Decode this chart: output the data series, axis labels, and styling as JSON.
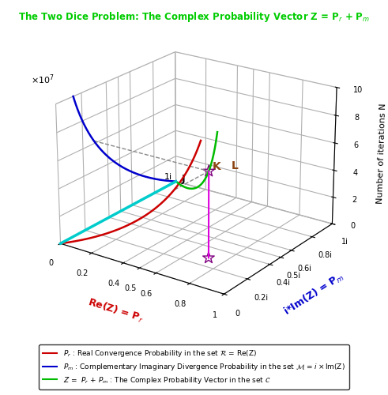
{
  "title_color": "#00CC00",
  "xlabel_color": "#CC0000",
  "ylabel_color": "#0000CC",
  "zlabel_color": "#000000",
  "red_color": "#CC0000",
  "blue_color": "#0000CC",
  "green_color": "#00BB00",
  "cyan_color": "#00CCCC",
  "magenta_color": "#DD00DD",
  "grey_dash_color": "#888888",
  "K_label_color": "#8B4513",
  "L_label_color": "#8B4513",
  "N_max": 10000000,
  "k_rate": 2e-07,
  "N_K": 6200000,
  "x_ticks": [
    0,
    0.2,
    0.4,
    0.5,
    0.6,
    0.8,
    1.0
  ],
  "x_ticklabels": [
    "0",
    "0.2",
    "0.4",
    "0.5",
    "0.6",
    "0.8",
    "1"
  ],
  "y_ticks": [
    0,
    0.2,
    0.4,
    0.5,
    0.6,
    0.8,
    1.0
  ],
  "y_ticklabels": [
    "0",
    "0.2i",
    "0.4i",
    "0.5i",
    "0.6i",
    "0.8i",
    "1i"
  ],
  "z_ticks": [
    0,
    2000000,
    4000000,
    6000000,
    8000000,
    10000000
  ],
  "z_ticklabels": [
    "0",
    "2",
    "4",
    "6",
    "8",
    "10"
  ],
  "elev": 22,
  "azim": -55
}
